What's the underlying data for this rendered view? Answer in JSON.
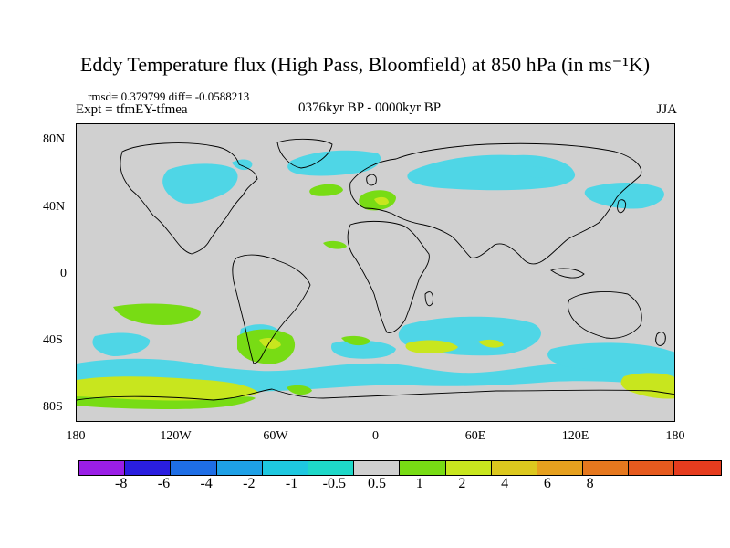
{
  "title": "Eddy Temperature flux (High Pass, Bloomfield) at 850 hPa (in ms⁻¹K)",
  "stats": "rmsd= 0.379799 diff= -0.0588213",
  "experiment": "Expt = tfmEY-tfmea",
  "period": "0376kyr BP - 0000kyr BP",
  "season": "JJA",
  "map": {
    "projection": "cylindrical equidistant",
    "lon_range": [
      -180,
      180
    ],
    "lat_range": [
      -90,
      90
    ],
    "y_tick_labels": [
      "80N",
      "40N",
      "0",
      "40S",
      "80S"
    ],
    "x_tick_labels": [
      "180",
      "120W",
      "60W",
      "0",
      "60E",
      "120E",
      "180"
    ]
  },
  "colorbar": {
    "colors": [
      "#9a1ee6",
      "#2a1ee0",
      "#1e6ee6",
      "#1ea0e6",
      "#1ec8e0",
      "#1ed8c8",
      "#d0d0d0",
      "#78dc14",
      "#c8e61e",
      "#dcc81e",
      "#e6a01e",
      "#e6781e",
      "#e65a1e",
      "#e63c1e"
    ],
    "labels": [
      "-8",
      "-6",
      "-4",
      "-2",
      "-1",
      "-0.5",
      "0.5",
      "1",
      "2",
      "4",
      "6",
      "8"
    ]
  }
}
